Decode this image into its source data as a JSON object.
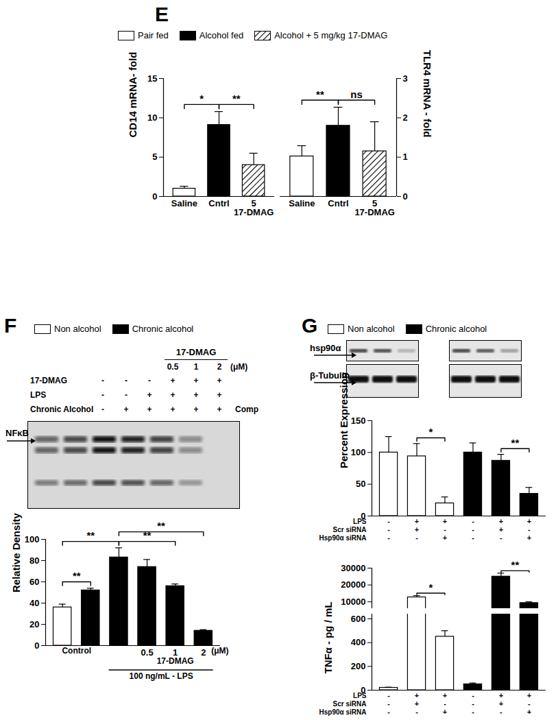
{
  "chart_data": [
    {
      "type": "bar",
      "y_label": "CD14 mRNA- fold",
      "categories": [
        "Saline",
        "Cntrl",
        "5\n17-DMAG"
      ],
      "values": [
        1.0,
        9.1,
        4.0
      ],
      "errors": [
        0.3,
        1.7,
        1.5
      ],
      "colors": [
        "#ffffff",
        "#000000",
        "#ffffff"
      ],
      "hatch": [
        false,
        false,
        true
      ],
      "ylim": [
        0,
        15
      ],
      "yticks": [
        0,
        5,
        10,
        15
      ],
      "significance": [
        {
          "from": 0,
          "to": 1,
          "label": "*"
        },
        {
          "from": 1,
          "to": 2,
          "label": "**"
        }
      ]
    },
    {
      "type": "bar",
      "y_label": "TLR4 mRNA - fold",
      "categories": [
        "Saline",
        "Cntrl",
        "5\n17-DMAG"
      ],
      "values": [
        1.02,
        1.8,
        1.15
      ],
      "errors": [
        0.27,
        0.47,
        0.75
      ],
      "colors": [
        "#ffffff",
        "#000000",
        "#ffffff"
      ],
      "hatch": [
        false,
        false,
        true
      ],
      "ylim": [
        0,
        3
      ],
      "yticks": [
        0,
        1,
        2,
        3
      ],
      "significance": [
        {
          "from": 0,
          "to": 1,
          "label": "**"
        },
        {
          "from": 1,
          "to": 2,
          "label": "ns"
        }
      ]
    },
    {
      "type": "bar",
      "y_label": "Relative Density",
      "categories": [
        null,
        null,
        null,
        "0.5",
        "1",
        "2"
      ],
      "values": [
        36,
        52,
        83,
        74,
        56,
        14
      ],
      "errors": [
        3,
        2,
        9,
        7,
        2,
        1
      ],
      "colors": [
        "#ffffff",
        "#000000",
        "#000000",
        "#000000",
        "#000000",
        "#000000"
      ],
      "ylim": [
        0,
        100
      ],
      "yticks": [
        0,
        20,
        40,
        60,
        80,
        100
      ],
      "x_unit": "(μM)",
      "x_groups": [
        {
          "label": "Control",
          "from": 0,
          "to": 1
        },
        {
          "label": "17-DMAG",
          "from": 3,
          "to": 5
        },
        {
          "label": "100 ng/mL - LPS",
          "from": 2,
          "to": 5
        }
      ],
      "significance": [
        {
          "from": 0,
          "to": 1,
          "label": "**"
        },
        {
          "from": 0,
          "to": 2,
          "label": "**"
        },
        {
          "from": 2,
          "to": 4,
          "label": "**"
        },
        {
          "from": 2,
          "to": 5,
          "label": "**"
        }
      ]
    },
    {
      "type": "bar",
      "y_label": "Percent Expression",
      "categories": [
        null,
        null,
        null,
        null,
        null,
        null
      ],
      "values": [
        100,
        94,
        20,
        100,
        87,
        35
      ],
      "errors": [
        25,
        20,
        10,
        15,
        10,
        10
      ],
      "colors": [
        "#ffffff",
        "#ffffff",
        "#ffffff",
        "#000000",
        "#000000",
        "#000000"
      ],
      "ylim": [
        0,
        150
      ],
      "yticks": [
        0,
        50,
        100,
        150
      ],
      "conditions": [
        {
          "label": "LPS",
          "marks": [
            "-",
            "+",
            "+",
            "-",
            "+",
            "+"
          ]
        },
        {
          "label": "Scr siRNA",
          "marks": [
            "-",
            "+",
            "-",
            "-",
            "+",
            "-"
          ]
        },
        {
          "label": "Hsp90α siRNA",
          "marks": [
            "-",
            "-",
            "+",
            "-",
            "-",
            "+"
          ]
        }
      ],
      "significance": [
        {
          "from": 1,
          "to": 2,
          "label": "*"
        },
        {
          "from": 4,
          "to": 5,
          "label": "**"
        }
      ]
    },
    {
      "type": "bar",
      "y_label": "TNFα - pg / mL",
      "categories": [
        null,
        null,
        null,
        null,
        null,
        null
      ],
      "values": [
        20,
        12700,
        450,
        50,
        25000,
        9300
      ],
      "errors": [
        5,
        1000,
        50,
        10,
        2000,
        700
      ],
      "colors": [
        "#ffffff",
        "#ffffff",
        "#ffffff",
        "#000000",
        "#000000",
        "#000000"
      ],
      "ylim": [
        0,
        30000
      ],
      "y_break": [
        640,
        6000
      ],
      "yticks": [
        0,
        200,
        400,
        600,
        10000,
        20000,
        30000
      ],
      "conditions": [
        {
          "label": "LPS",
          "marks": [
            "-",
            "+",
            "+",
            "-",
            "+",
            "+"
          ]
        },
        {
          "label": "Scr siRNA",
          "marks": [
            "-",
            "+",
            "-",
            "-",
            "+",
            "-"
          ]
        },
        {
          "label": "Hsp90α siRNA",
          "marks": [
            "-",
            "-",
            "+",
            "-",
            "-",
            "+"
          ]
        }
      ],
      "significance": [
        {
          "from": 1,
          "to": 2,
          "label": "*"
        },
        {
          "from": 4,
          "to": 5,
          "label": "**"
        }
      ]
    }
  ],
  "panels": [
    {
      "label": "E",
      "legend": [
        {
          "name": "Pair fed",
          "color": "#ffffff"
        },
        {
          "name": "Alcohol fed",
          "color": "#000000"
        },
        {
          "name": "Alcohol + 5 mg/kg 17-DMAG",
          "color": "#ffffff",
          "hatch": true
        }
      ]
    },
    {
      "label": "F",
      "legend": [
        {
          "name": "Non alcohol",
          "color": "#ffffff"
        },
        {
          "name": "Chronic alcohol",
          "color": "#000000"
        }
      ],
      "blot": {
        "header": "17-DMAG",
        "doses": [
          "0.5",
          "1",
          "2"
        ],
        "unit": "(μM)",
        "rows": [
          {
            "label": "17-DMAG",
            "marks": [
              "-",
              "-",
              "-",
              "+",
              "+",
              "+"
            ]
          },
          {
            "label": "LPS",
            "marks": [
              "-",
              "-",
              "+",
              "+",
              "+",
              "+"
            ]
          },
          {
            "label": "Chronic Alcohol",
            "marks": [
              "-",
              "+",
              "+",
              "+",
              "+",
              "+",
              "Comp"
            ]
          }
        ],
        "band": "NFκB"
      }
    },
    {
      "label": "G",
      "legend": [
        {
          "name": "Non alcohol",
          "color": "#ffffff"
        },
        {
          "name": "Chronic alcohol",
          "color": "#000000"
        }
      ],
      "blot": {
        "bands": [
          "hsp90α",
          "β-Tubulin"
        ]
      }
    }
  ]
}
